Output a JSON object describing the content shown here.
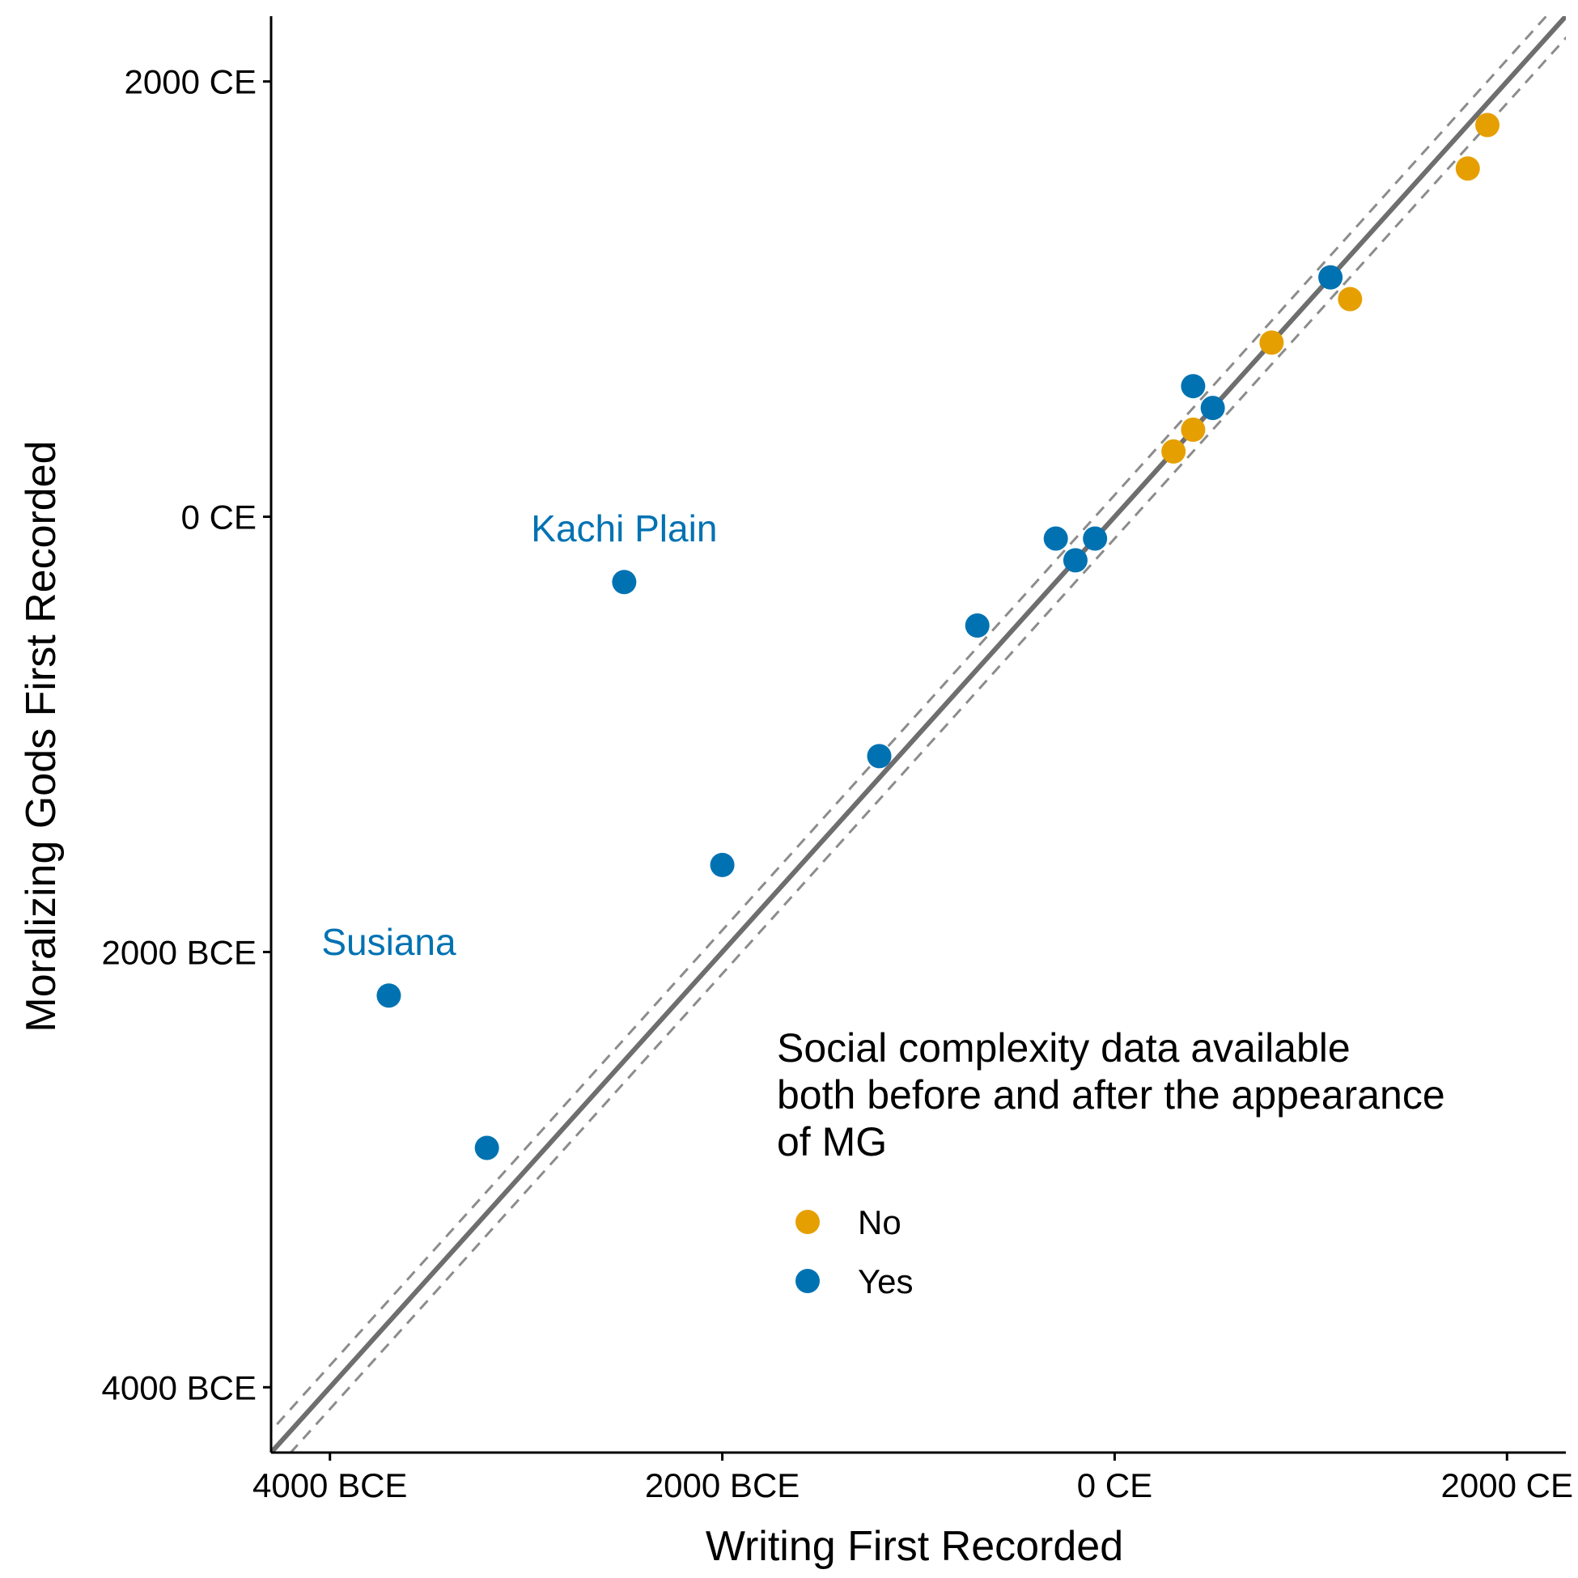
{
  "chart_data": {
    "type": "scatter",
    "xlabel": "Writing First Recorded",
    "ylabel": "Moralizing Gods First Recorded",
    "xlim": [
      -4300,
      2300
    ],
    "ylim": [
      -4300,
      2300
    ],
    "x_ticks": [
      {
        "value": -4000,
        "label": "4000 BCE"
      },
      {
        "value": -2000,
        "label": "2000 BCE"
      },
      {
        "value": 0,
        "label": "0 CE"
      },
      {
        "value": 2000,
        "label": "2000 CE"
      }
    ],
    "y_ticks": [
      {
        "value": -4000,
        "label": "4000 BCE"
      },
      {
        "value": -2000,
        "label": "2000 BCE"
      },
      {
        "value": 0,
        "label": "0 CE"
      },
      {
        "value": 2000,
        "label": "2000 CE"
      }
    ],
    "reference_lines": [
      {
        "slope": 1,
        "intercept": 0,
        "style": "solid",
        "color": "#6e6e6e"
      },
      {
        "slope": 1,
        "intercept": 100,
        "style": "dashed",
        "color": "#8c8c8c"
      },
      {
        "slope": 1,
        "intercept": -100,
        "style": "dashed",
        "color": "#8c8c8c"
      }
    ],
    "grid": false,
    "legend": {
      "title": [
        "Social complexity data available",
        "both before and after the appearance",
        "of MG"
      ],
      "position": "bottom-right"
    },
    "series": [
      {
        "name": "No",
        "color": "#E69F00",
        "points": [
          {
            "x": 300,
            "y": 300
          },
          {
            "x": 400,
            "y": 400
          },
          {
            "x": 800,
            "y": 800
          },
          {
            "x": 1200,
            "y": 1000
          },
          {
            "x": 1800,
            "y": 1600
          },
          {
            "x": 1900,
            "y": 1800
          }
        ]
      },
      {
        "name": "Yes",
        "color": "#0072B2",
        "points": [
          {
            "x": -3700,
            "y": -2200
          },
          {
            "x": -3200,
            "y": -2900
          },
          {
            "x": -2500,
            "y": -300,
            "label": "Kachi Plain"
          },
          {
            "x": -2000,
            "y": -1600
          },
          {
            "x": -1200,
            "y": -1100
          },
          {
            "x": -700,
            "y": -500
          },
          {
            "x": -300,
            "y": -100
          },
          {
            "x": -200,
            "y": -200
          },
          {
            "x": -100,
            "y": -100
          },
          {
            "x": 400,
            "y": 600
          },
          {
            "x": 500,
            "y": 500
          },
          {
            "x": 1100,
            "y": 1100
          }
        ]
      }
    ],
    "annotations": [
      {
        "text": "Kachi Plain",
        "x": -2500,
        "y": -300,
        "color": "#0072B2"
      },
      {
        "text": "Susiana",
        "x": -3700,
        "y": -2200,
        "color": "#0072B2"
      }
    ]
  }
}
